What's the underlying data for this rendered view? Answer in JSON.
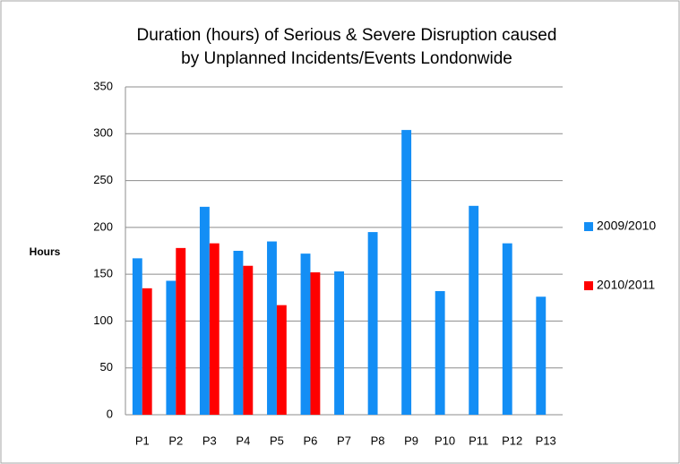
{
  "chart_data": {
    "type": "bar",
    "title": [
      "Duration (hours) of Serious & Severe Disruption caused",
      "by Unplanned Incidents/Events Londonwide"
    ],
    "y_label": "Hours",
    "categories": [
      "P1",
      "P2",
      "P3",
      "P4",
      "P5",
      "P6",
      "P7",
      "P8",
      "P9",
      "P10",
      "P11",
      "P12",
      "P13"
    ],
    "series": [
      {
        "name": "2009/2010",
        "color": "#138ef5",
        "values": [
          167,
          143,
          222,
          175,
          185,
          172,
          153,
          195,
          304,
          132,
          223,
          183,
          126
        ]
      },
      {
        "name": "2010/2011",
        "color": "#ff0000",
        "values": [
          135,
          178,
          183,
          159,
          117,
          152,
          null,
          null,
          null,
          null,
          null,
          null,
          null
        ]
      }
    ],
    "ylim": [
      0,
      350
    ],
    "yticks": [
      0,
      50,
      100,
      150,
      200,
      250,
      300,
      350
    ],
    "grid": true,
    "legend": "right"
  }
}
